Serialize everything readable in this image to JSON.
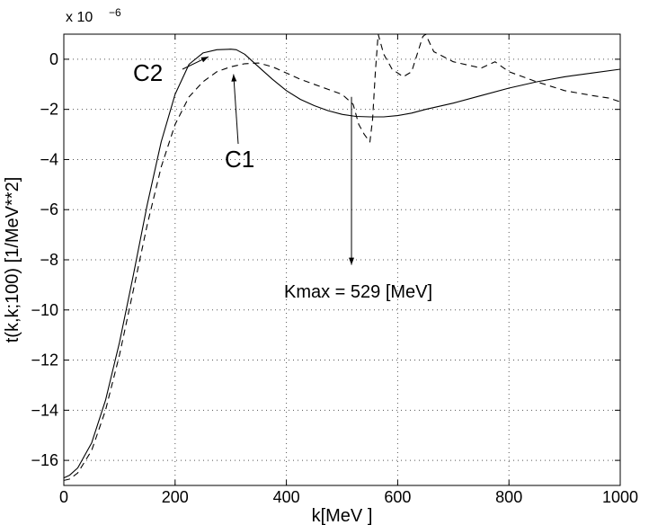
{
  "chart_data": {
    "type": "line",
    "title": "",
    "xlabel": "k[MeV ]",
    "ylabel": "t(k,k;100) [1/MeV**2]",
    "y_exponent_label": "x 10",
    "y_exponent_power": "−6",
    "xlim": [
      0,
      1000
    ],
    "ylim": [
      -17,
      1
    ],
    "x_ticks": [
      0,
      200,
      400,
      600,
      800,
      1000
    ],
    "y_ticks": [
      0,
      -2,
      -4,
      -6,
      -8,
      -10,
      -12,
      -14,
      -16
    ],
    "x_tick_labels": [
      "0",
      "200",
      "400",
      "600",
      "800",
      "1000"
    ],
    "y_tick_labels": [
      "0",
      "−2",
      "−4",
      "−6",
      "−8",
      "−10",
      "−12",
      "−14",
      "−16"
    ],
    "grid": true,
    "series": [
      {
        "name": "C2",
        "style": "solid",
        "x": [
          0,
          10,
          25,
          50,
          75,
          100,
          125,
          150,
          175,
          200,
          225,
          250,
          275,
          300,
          310,
          325,
          350,
          375,
          400,
          425,
          450,
          475,
          500,
          525,
          550,
          575,
          600,
          625,
          650,
          700,
          750,
          800,
          850,
          900,
          950,
          1000
        ],
        "y": [
          -16.7,
          -16.6,
          -16.3,
          -15.3,
          -13.6,
          -11.3,
          -8.6,
          -5.8,
          -3.3,
          -1.4,
          -0.2,
          0.25,
          0.38,
          0.4,
          0.38,
          0.2,
          -0.3,
          -0.8,
          -1.25,
          -1.6,
          -1.85,
          -2.05,
          -2.2,
          -2.28,
          -2.3,
          -2.3,
          -2.25,
          -2.15,
          -2.0,
          -1.75,
          -1.45,
          -1.15,
          -0.9,
          -0.7,
          -0.55,
          -0.4
        ]
      },
      {
        "name": "C1",
        "style": "dashed",
        "x": [
          0,
          10,
          25,
          50,
          75,
          100,
          125,
          150,
          175,
          200,
          225,
          250,
          275,
          300,
          325,
          350,
          375,
          400,
          425,
          450,
          475,
          500,
          520,
          530,
          540,
          550,
          555,
          560,
          565,
          575,
          590,
          610,
          625,
          635,
          645,
          650,
          665,
          700,
          750,
          765,
          775,
          800,
          850,
          900,
          950,
          980,
          1000
        ],
        "y": [
          -16.8,
          -16.75,
          -16.5,
          -15.6,
          -14.0,
          -11.8,
          -9.2,
          -6.6,
          -4.3,
          -2.6,
          -1.5,
          -0.9,
          -0.5,
          -0.3,
          -0.18,
          -0.15,
          -0.3,
          -0.55,
          -0.8,
          -1.0,
          -1.2,
          -1.4,
          -1.8,
          -2.6,
          -3.0,
          -3.3,
          -2.4,
          -0.5,
          1.0,
          0.2,
          -0.4,
          -0.7,
          -0.5,
          0.2,
          0.9,
          1.0,
          0.3,
          -0.1,
          -0.35,
          -0.2,
          -0.1,
          -0.5,
          -0.9,
          -1.25,
          -1.45,
          -1.55,
          -1.7
        ]
      }
    ],
    "annotations": [
      {
        "text": "C2",
        "points_to": "C2 curve near its peak (~k=260)"
      },
      {
        "text": "C1",
        "points_to": "C1 curve near k=300"
      },
      {
        "text": "Kmax = 529 [MeV]",
        "arrow": "vertical arrow at k≈529"
      }
    ]
  }
}
